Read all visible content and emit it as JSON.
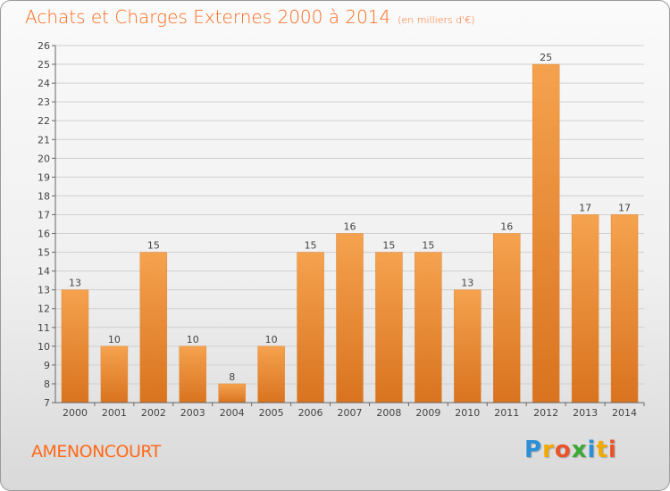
{
  "header": {
    "title": "Achats et Charges Externes 2000 à 2014",
    "subtitle": "(en milliers d'€)"
  },
  "footer": {
    "place": "AMENONCOURT",
    "brand": [
      "P",
      "r",
      "o",
      "x",
      "i",
      "t",
      "i"
    ],
    "brand_colors": [
      "#2a8fd6",
      "#f2a900",
      "#e8532a",
      "#3aa935",
      "#2a8fd6",
      "#f2a900",
      "#e8532a"
    ]
  },
  "colors": {
    "bar_top": "#f5a24e",
    "bar_bottom": "#d9731f",
    "grid": "#cfcfcf",
    "accent": "#ff6a1a"
  },
  "chart_data": {
    "type": "bar",
    "categories": [
      "2000",
      "2001",
      "2002",
      "2003",
      "2004",
      "2005",
      "2006",
      "2007",
      "2008",
      "2009",
      "2010",
      "2011",
      "2012",
      "2013",
      "2014"
    ],
    "values": [
      13,
      10,
      15,
      10,
      8,
      10,
      15,
      16,
      15,
      15,
      13,
      16,
      25,
      17,
      17
    ],
    "ylim": [
      7,
      26
    ],
    "yticks": [
      7,
      8,
      9,
      10,
      11,
      12,
      13,
      14,
      15,
      16,
      17,
      18,
      19,
      20,
      21,
      22,
      23,
      24,
      25,
      26
    ],
    "grid": true,
    "data_labels": true
  }
}
